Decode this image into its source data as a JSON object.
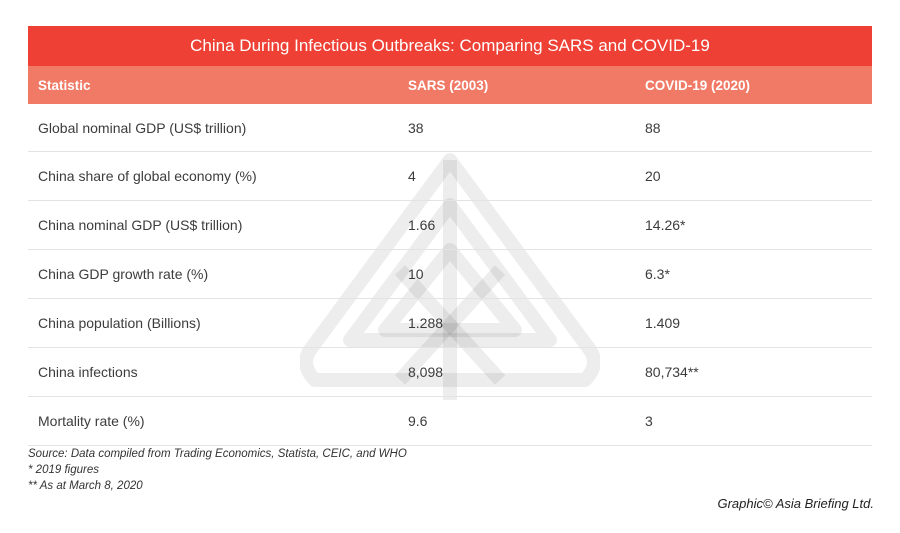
{
  "title": "China During Infectious Outbreaks: Comparing SARS and COVID-19",
  "columns": [
    "Statistic",
    "SARS (2003)",
    "COVID-19 (2020)"
  ],
  "rows": [
    {
      "statistic": "Global nominal GDP (US$ trillion)",
      "sars": "38",
      "covid": "88"
    },
    {
      "statistic": "China share of global economy (%)",
      "sars": "4",
      "covid": "20"
    },
    {
      "statistic": "China nominal GDP (US$ trillion)",
      "sars": "1.66",
      "covid": "14.26*"
    },
    {
      "statistic": "China GDP growth rate (%)",
      "sars": "10",
      "covid": "6.3*"
    },
    {
      "statistic": "China population (Billions)",
      "sars": "1.288",
      "covid": "1.409"
    },
    {
      "statistic": "China infections",
      "sars": "8,098",
      "covid": "80,734**"
    },
    {
      "statistic": "Mortality rate (%)",
      "sars": "9.6",
      "covid": "3"
    }
  ],
  "notes": {
    "source": "Source: Data compiled from Trading Economics, Statista, CEIC, and WHO",
    "note1": "* 2019 figures",
    "note2": "** As at March 8, 2020"
  },
  "credit": "Graphic© Asia Briefing Ltd.",
  "colors": {
    "title_bg": "#ee4034",
    "header_bg": "#f17a66",
    "watermark": "#d0d0d0"
  }
}
